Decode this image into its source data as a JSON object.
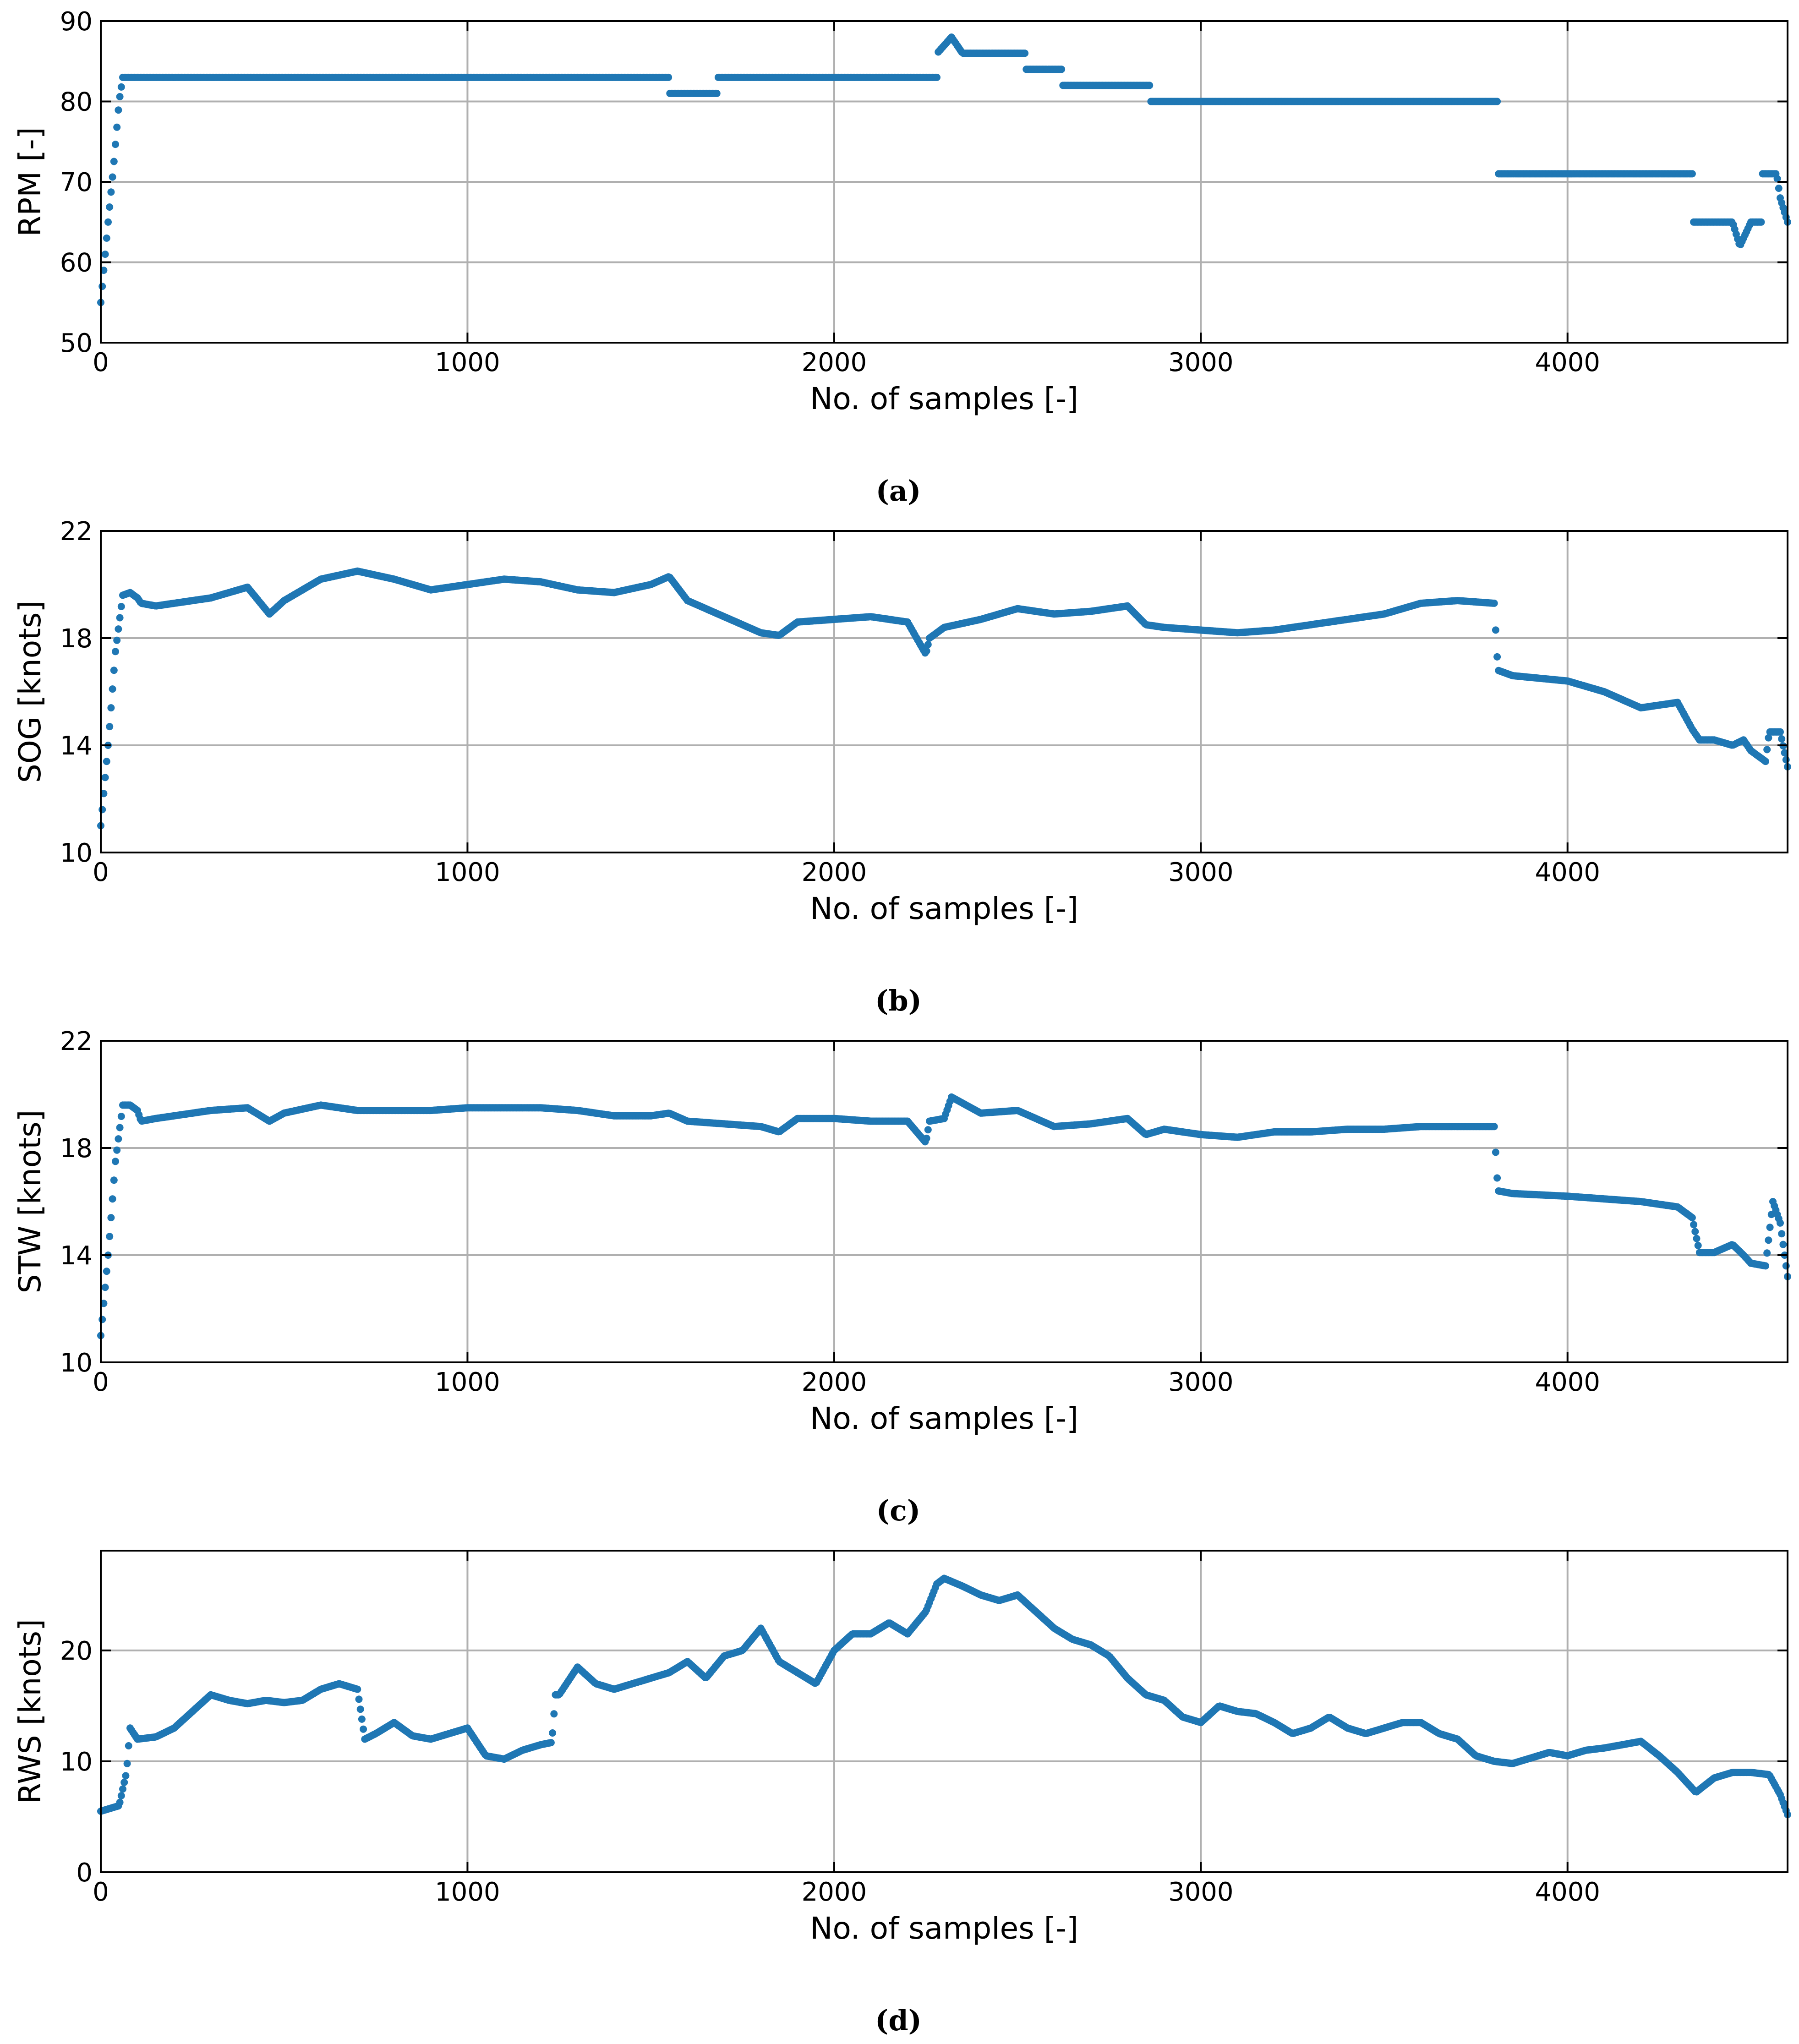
{
  "colors": {
    "series": "#1f77b4",
    "grid": "#b0b0b0",
    "axis": "#000000"
  },
  "chart_data": [
    {
      "id": "a",
      "type": "scatter",
      "caption": "(a)",
      "xlabel": "No. of samples [-]",
      "ylabel": "RPM [-]",
      "xlim": [
        0,
        4600
      ],
      "ylim": [
        50,
        90
      ],
      "xticks": [
        0,
        1000,
        2000,
        3000,
        4000
      ],
      "yticks": [
        50,
        60,
        70,
        80,
        90
      ],
      "grid": true,
      "series": [
        {
          "name": "RPM",
          "x": [
            0,
            10,
            20,
            35,
            50,
            60,
            300,
            700,
            1100,
            1500,
            1550,
            1551,
            1680,
            1681,
            2000,
            2280,
            2281,
            2320,
            2350,
            2520,
            2521,
            2620,
            2621,
            2850,
            2860,
            2861,
            3500,
            3810,
            3811,
            4000,
            4340,
            4341,
            4450,
            4470,
            4500,
            4530,
            4531,
            4570,
            4580,
            4600
          ],
          "y": [
            55,
            60,
            65,
            72,
            80,
            83,
            83,
            83,
            83,
            83,
            83,
            81,
            81,
            83,
            83,
            83,
            86,
            88,
            86,
            86,
            84,
            84,
            82,
            82,
            82,
            80,
            80,
            80,
            71,
            71,
            71,
            65,
            65,
            62,
            65,
            65,
            71,
            71,
            68,
            65
          ]
        }
      ]
    },
    {
      "id": "b",
      "type": "scatter",
      "caption": "(b)",
      "xlabel": "No. of samples [-]",
      "ylabel": "SOG [knots]",
      "xlim": [
        0,
        4600
      ],
      "ylim": [
        10,
        22
      ],
      "xticks": [
        0,
        1000,
        2000,
        3000,
        4000
      ],
      "yticks": [
        10,
        14,
        18,
        22
      ],
      "grid": true,
      "series": [
        {
          "name": "SOG",
          "x": [
            0,
            20,
            40,
            60,
            80,
            100,
            110,
            150,
            200,
            300,
            400,
            460,
            500,
            600,
            700,
            800,
            900,
            1000,
            1100,
            1200,
            1300,
            1400,
            1500,
            1550,
            1600,
            1700,
            1800,
            1850,
            1900,
            2000,
            2100,
            2200,
            2250,
            2260,
            2300,
            2400,
            2500,
            2600,
            2700,
            2800,
            2850,
            2900,
            3000,
            3100,
            3200,
            3300,
            3400,
            3500,
            3600,
            3700,
            3800,
            3810,
            3850,
            4000,
            4100,
            4200,
            4300,
            4340,
            4360,
            4400,
            4450,
            4480,
            4500,
            4540,
            4550,
            4580,
            4600
          ],
          "y": [
            11,
            14,
            17.5,
            19.6,
            19.7,
            19.5,
            19.3,
            19.2,
            19.3,
            19.5,
            19.9,
            18.9,
            19.4,
            20.2,
            20.5,
            20.2,
            19.8,
            20,
            20.2,
            20.1,
            19.8,
            19.7,
            20,
            20.3,
            19.4,
            18.8,
            18.2,
            18.1,
            18.6,
            18.7,
            18.8,
            18.6,
            17.4,
            18,
            18.4,
            18.7,
            19.1,
            18.9,
            19,
            19.2,
            18.5,
            18.4,
            18.3,
            18.2,
            18.3,
            18.5,
            18.7,
            18.9,
            19.3,
            19.4,
            19.3,
            16.8,
            16.6,
            16.4,
            16,
            15.4,
            15.6,
            14.6,
            14.2,
            14.2,
            14,
            14.2,
            13.8,
            13.4,
            14.5,
            14.5,
            13.2
          ]
        }
      ]
    },
    {
      "id": "c",
      "type": "scatter",
      "caption": "(c)",
      "xlabel": "No. of samples [-]",
      "ylabel": "STW [knots]",
      "xlim": [
        0,
        4600
      ],
      "ylim": [
        10,
        22
      ],
      "xticks": [
        0,
        1000,
        2000,
        3000,
        4000
      ],
      "yticks": [
        10,
        14,
        18,
        22
      ],
      "grid": true,
      "series": [
        {
          "name": "STW",
          "x": [
            0,
            20,
            40,
            60,
            80,
            100,
            110,
            150,
            200,
            300,
            400,
            460,
            500,
            600,
            700,
            800,
            900,
            1000,
            1100,
            1200,
            1300,
            1400,
            1500,
            1550,
            1600,
            1700,
            1800,
            1850,
            1900,
            2000,
            2100,
            2200,
            2250,
            2260,
            2300,
            2320,
            2400,
            2500,
            2600,
            2700,
            2800,
            2850,
            2900,
            3000,
            3100,
            3200,
            3300,
            3400,
            3500,
            3600,
            3700,
            3800,
            3810,
            3850,
            4000,
            4100,
            4200,
            4300,
            4340,
            4360,
            4400,
            4450,
            4480,
            4500,
            4540,
            4560,
            4580,
            4600
          ],
          "y": [
            11,
            14,
            17.5,
            19.6,
            19.6,
            19.4,
            19,
            19.1,
            19.2,
            19.4,
            19.5,
            19,
            19.3,
            19.6,
            19.4,
            19.4,
            19.4,
            19.5,
            19.5,
            19.5,
            19.4,
            19.2,
            19.2,
            19.3,
            19,
            18.9,
            18.8,
            18.6,
            19.1,
            19.1,
            19,
            19,
            18.2,
            19,
            19.1,
            19.9,
            19.3,
            19.4,
            18.8,
            18.9,
            19.1,
            18.5,
            18.7,
            18.5,
            18.4,
            18.6,
            18.6,
            18.7,
            18.7,
            18.8,
            18.8,
            18.8,
            16.4,
            16.3,
            16.2,
            16.1,
            16,
            15.8,
            15.4,
            14.1,
            14.1,
            14.4,
            14,
            13.7,
            13.6,
            16,
            15.2,
            13.2
          ]
        }
      ]
    },
    {
      "id": "d",
      "type": "scatter",
      "caption": "(d)",
      "xlabel": "No. of samples [-]",
      "ylabel": "RWS [knots]",
      "xlim": [
        0,
        4600
      ],
      "ylim": [
        0,
        29
      ],
      "xticks": [
        0,
        1000,
        2000,
        3000,
        4000
      ],
      "yticks": [
        0,
        10,
        20
      ],
      "grid": true,
      "series": [
        {
          "name": "RWS",
          "x": [
            0,
            30,
            50,
            70,
            80,
            100,
            150,
            200,
            250,
            300,
            350,
            400,
            450,
            500,
            550,
            600,
            650,
            700,
            720,
            750,
            800,
            850,
            900,
            950,
            1000,
            1050,
            1100,
            1150,
            1200,
            1230,
            1240,
            1250,
            1300,
            1350,
            1400,
            1450,
            1500,
            1550,
            1600,
            1650,
            1700,
            1750,
            1800,
            1850,
            1900,
            1950,
            2000,
            2050,
            2100,
            2150,
            2200,
            2250,
            2280,
            2300,
            2350,
            2400,
            2450,
            2500,
            2550,
            2600,
            2650,
            2700,
            2750,
            2800,
            2850,
            2900,
            2950,
            3000,
            3050,
            3100,
            3150,
            3200,
            3250,
            3300,
            3350,
            3400,
            3450,
            3500,
            3550,
            3600,
            3650,
            3700,
            3750,
            3800,
            3850,
            3900,
            3950,
            4000,
            4050,
            4100,
            4150,
            4200,
            4250,
            4300,
            4350,
            4400,
            4450,
            4500,
            4550,
            4580,
            4600
          ],
          "y": [
            5.5,
            5.8,
            6,
            9,
            13,
            12,
            12.2,
            13,
            14.5,
            16,
            15.5,
            15.2,
            15.5,
            15.3,
            15.5,
            16.5,
            17,
            16.5,
            12,
            12.5,
            13.5,
            12.3,
            12,
            12.5,
            13,
            10.5,
            10.2,
            11,
            11.5,
            11.7,
            16,
            16,
            18.5,
            17,
            16.5,
            17,
            17.5,
            18,
            19,
            17.5,
            19.5,
            20,
            22,
            19,
            18,
            17,
            20,
            21.5,
            21.5,
            22.5,
            21.5,
            23.5,
            26,
            26.5,
            25.8,
            25,
            24.5,
            25,
            23.5,
            22,
            21,
            20.5,
            19.5,
            17.5,
            16,
            15.5,
            14,
            13.5,
            15,
            14.5,
            14.3,
            13.5,
            12.5,
            13,
            14,
            13,
            12.5,
            13,
            13.5,
            13.5,
            12.5,
            12,
            10.5,
            10,
            9.8,
            10.3,
            10.8,
            10.5,
            11,
            11.2,
            11.5,
            11.8,
            10.5,
            9,
            7.2,
            8.5,
            9,
            9,
            8.8,
            7,
            5.2
          ]
        }
      ]
    }
  ]
}
